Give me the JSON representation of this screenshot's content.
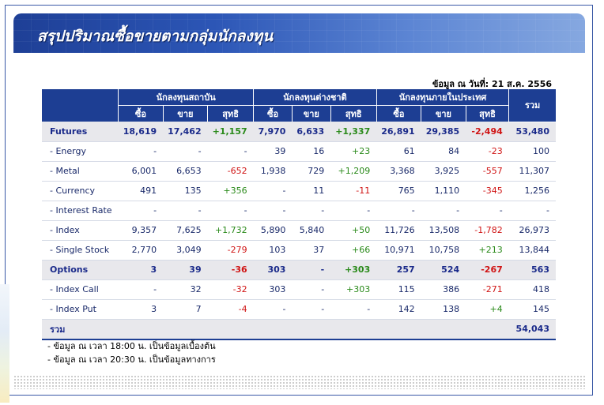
{
  "banner": {
    "title": "สรุปปริมาณซื้อขายตามกลุ่มนักลงทุน"
  },
  "as_of": "ข้อมูล ณ วันที่: 21 ส.ค. 2556",
  "table": {
    "groups": [
      "นักลงทุนสถาบัน",
      "นักลงทุนต่างชาติ",
      "นักลงทุนภายในประเทศ"
    ],
    "total_header": "รวม",
    "sub": {
      "buy": "ซื้อ",
      "sell": "ขาย",
      "net": "สุทธิ"
    },
    "rows": [
      {
        "label": "Futures",
        "main": true,
        "c": [
          "18,619",
          "17,462",
          "+1,157",
          "7,970",
          "6,633",
          "+1,337",
          "26,891",
          "29,385",
          "-2,494",
          "53,480"
        ]
      },
      {
        "label": "- Energy",
        "main": false,
        "c": [
          "-",
          "-",
          "-",
          "39",
          "16",
          "+23",
          "61",
          "84",
          "-23",
          "100"
        ]
      },
      {
        "label": "- Metal",
        "main": false,
        "c": [
          "6,001",
          "6,653",
          "-652",
          "1,938",
          "729",
          "+1,209",
          "3,368",
          "3,925",
          "-557",
          "11,307"
        ]
      },
      {
        "label": "- Currency",
        "main": false,
        "c": [
          "491",
          "135",
          "+356",
          "-",
          "11",
          "-11",
          "765",
          "1,110",
          "-345",
          "1,256"
        ]
      },
      {
        "label": "- Interest Rate",
        "main": false,
        "c": [
          "-",
          "-",
          "-",
          "-",
          "-",
          "-",
          "-",
          "-",
          "-",
          "-"
        ]
      },
      {
        "label": "- Index",
        "main": false,
        "c": [
          "9,357",
          "7,625",
          "+1,732",
          "5,890",
          "5,840",
          "+50",
          "11,726",
          "13,508",
          "-1,782",
          "26,973"
        ]
      },
      {
        "label": "- Single Stock",
        "main": false,
        "c": [
          "2,770",
          "3,049",
          "-279",
          "103",
          "37",
          "+66",
          "10,971",
          "10,758",
          "+213",
          "13,844"
        ]
      },
      {
        "label": "Options",
        "main": true,
        "c": [
          "3",
          "39",
          "-36",
          "303",
          "-",
          "+303",
          "257",
          "524",
          "-267",
          "563"
        ]
      },
      {
        "label": "- Index Call",
        "main": false,
        "c": [
          "-",
          "32",
          "-32",
          "303",
          "-",
          "+303",
          "115",
          "386",
          "-271",
          "418"
        ]
      },
      {
        "label": "- Index Put",
        "main": false,
        "c": [
          "3",
          "7",
          "-4",
          "-",
          "-",
          "-",
          "142",
          "138",
          "+4",
          "145"
        ]
      }
    ],
    "total_row": {
      "label": "รวม",
      "value": "54,043"
    }
  },
  "notes": [
    "- ข้อมูล ณ เวลา 18:00 น. เป็นข้อมูลเบื้องต้น",
    "- ข้อมูล ณ เวลา 20:30 น. เป็นข้อมูลทางการ"
  ],
  "colors": {
    "header_bg": "#1d3e93",
    "positive": "#2a8a1a",
    "negative": "#d01414"
  }
}
